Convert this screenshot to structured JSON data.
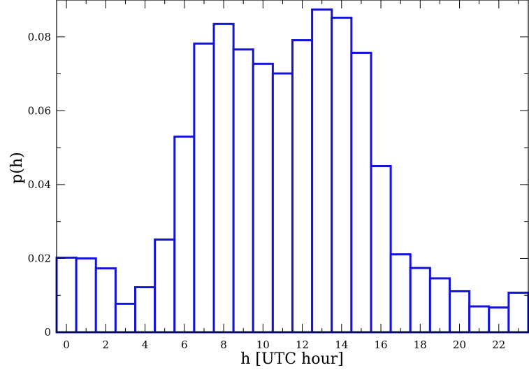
{
  "chart_data": {
    "type": "bar",
    "title": "",
    "xlabel": "h [UTC hour]",
    "ylabel": "p(h)",
    "x": [
      0,
      1,
      2,
      3,
      4,
      5,
      6,
      7,
      8,
      9,
      10,
      11,
      12,
      13,
      14,
      15,
      16,
      17,
      18,
      19,
      20,
      21,
      22,
      23
    ],
    "values": [
      0.0202,
      0.02,
      0.0173,
      0.0077,
      0.0122,
      0.0251,
      0.053,
      0.0782,
      0.0835,
      0.0766,
      0.0727,
      0.0701,
      0.0791,
      0.0874,
      0.0852,
      0.0757,
      0.045,
      0.0211,
      0.0174,
      0.0146,
      0.0111,
      0.007,
      0.0067,
      0.0107
    ],
    "xlim": [
      -0.5,
      23.5
    ],
    "ylim": [
      0,
      0.09
    ],
    "x_ticks": [
      0,
      2,
      4,
      6,
      8,
      10,
      12,
      14,
      16,
      18,
      20,
      22
    ],
    "x_tick_labels": [
      "0",
      "2",
      "4",
      "6",
      "8",
      "10",
      "12",
      "14",
      "16",
      "18",
      "20",
      "22"
    ],
    "y_ticks": [
      0,
      0.02,
      0.04,
      0.06,
      0.08
    ],
    "y_tick_labels": [
      "0",
      "0.02",
      "0.04",
      "0.06",
      "0.08"
    ],
    "grid": false,
    "colors": {
      "bar_outline": "#1414d8",
      "bar_fill": "#ffffff"
    }
  }
}
